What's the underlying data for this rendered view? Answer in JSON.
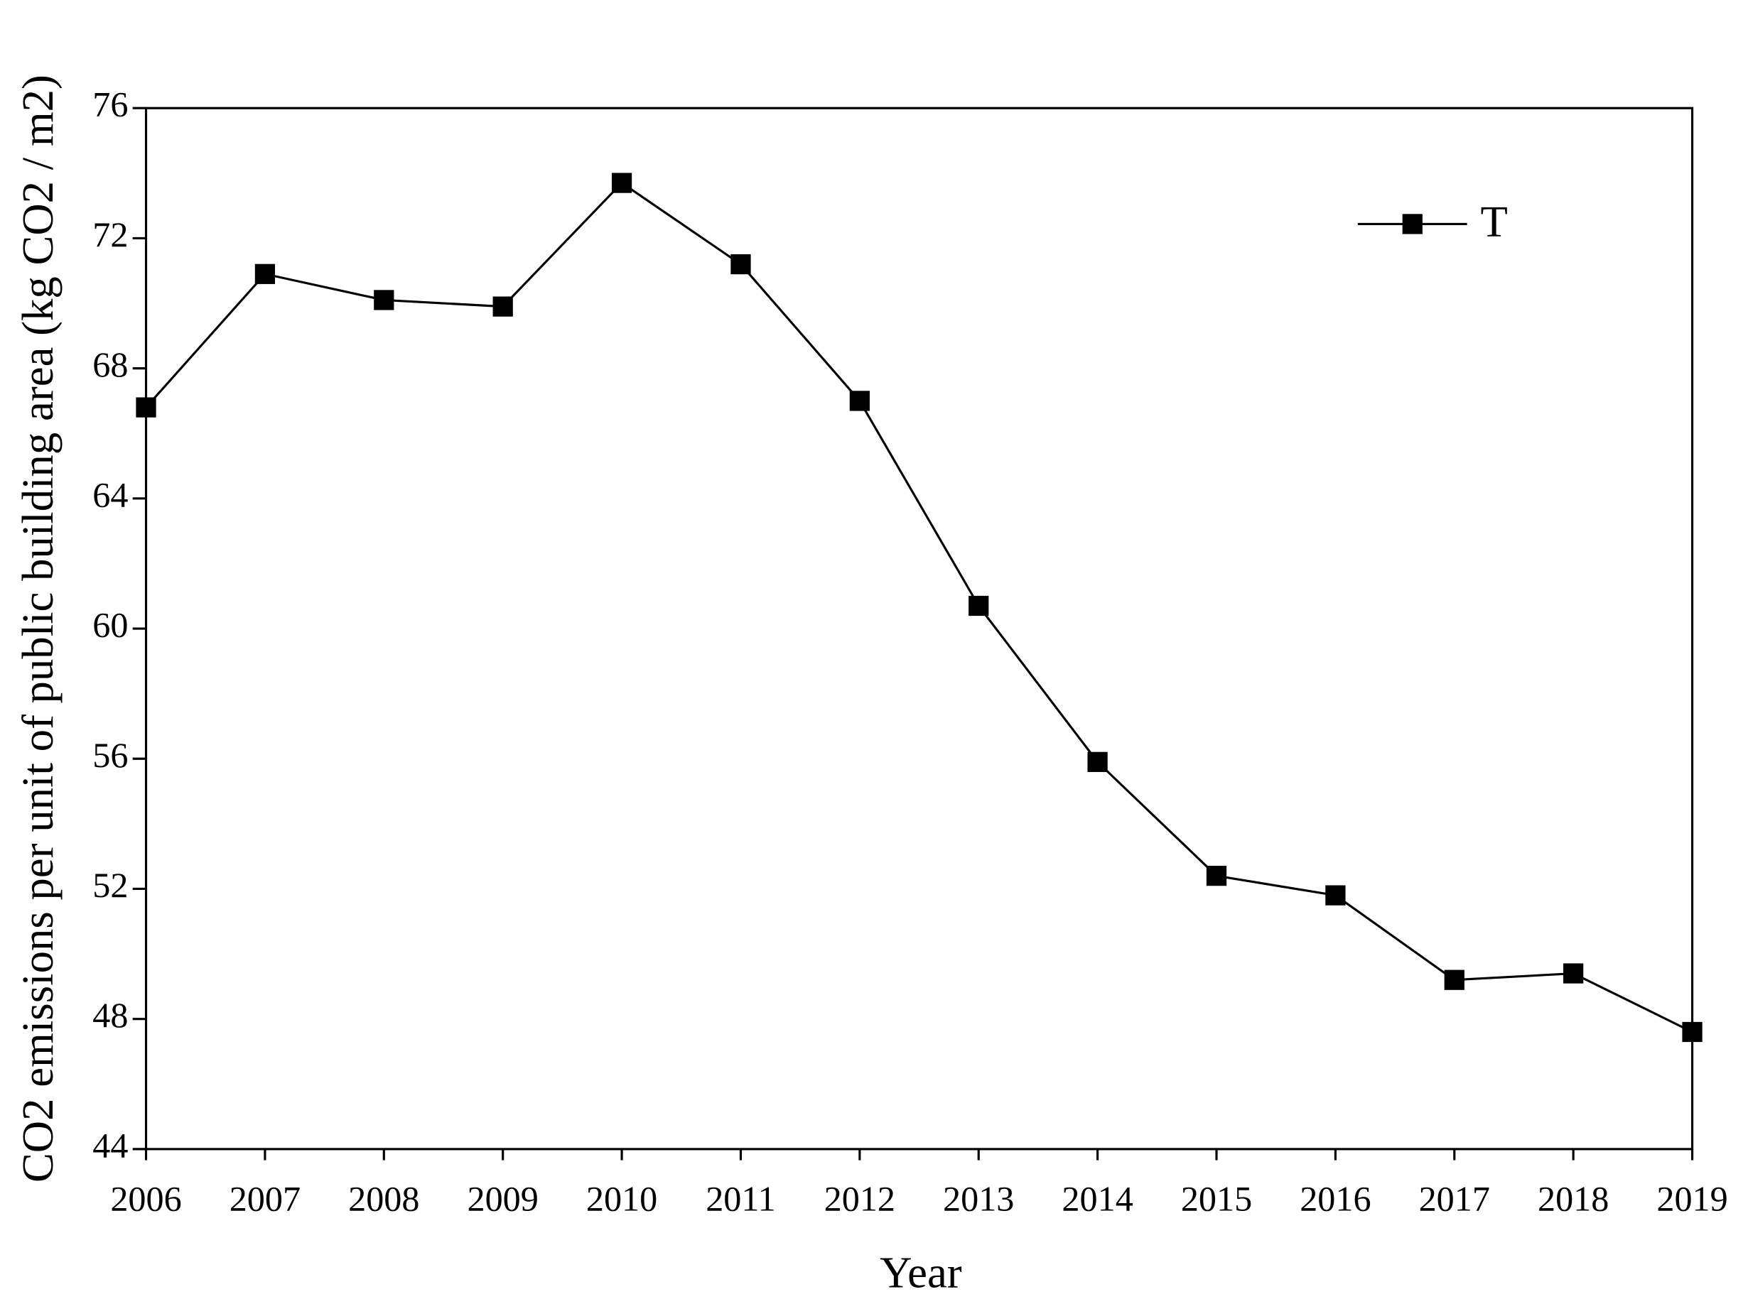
{
  "chart_data": {
    "type": "line",
    "x_label": "Year",
    "y_label": "CO2 emissions per unit of public building area (kg CO2 / m2)",
    "x": [
      2006,
      2007,
      2008,
      2009,
      2010,
      2011,
      2012,
      2013,
      2014,
      2015,
      2016,
      2017,
      2018,
      2019
    ],
    "series": [
      {
        "name": "T",
        "color": "#000000",
        "values": [
          66.8,
          70.9,
          70.1,
          69.9,
          73.7,
          71.2,
          67.0,
          60.7,
          55.9,
          52.4,
          51.8,
          49.2,
          49.4,
          47.6
        ]
      }
    ],
    "xlim": [
      2006,
      2019
    ],
    "xticks": [
      2006,
      2007,
      2008,
      2009,
      2010,
      2011,
      2012,
      2013,
      2014,
      2015,
      2016,
      2017,
      2018,
      2019
    ],
    "ylim": [
      44,
      76
    ],
    "yticks": [
      44,
      48,
      52,
      56,
      60,
      64,
      68,
      72,
      76
    ],
    "legend": "upper right",
    "grid": false
  }
}
